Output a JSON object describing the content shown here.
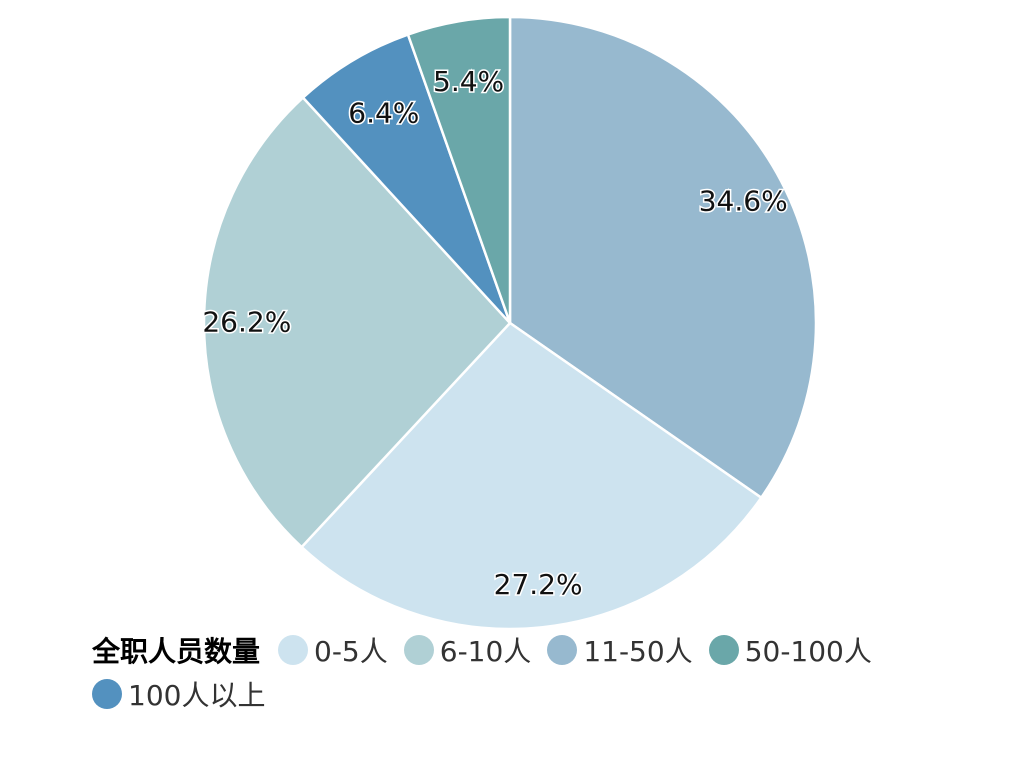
{
  "chart_data": {
    "type": "pie",
    "slices": [
      {
        "label": "11-50人",
        "value": 34.6,
        "display": "34.6%",
        "color": "#97b9cf"
      },
      {
        "label": "0-5人",
        "value": 27.2,
        "display": "27.2%",
        "color": "#cde3ef"
      },
      {
        "label": "6-10人",
        "value": 26.2,
        "display": "26.2%",
        "color": "#b0d0d5"
      },
      {
        "label": "100人以上",
        "value": 6.4,
        "display": "6.4%",
        "color": "#5391bf"
      },
      {
        "label": "50-100人",
        "value": 5.4,
        "display": "5.4%",
        "color": "#6aa7a9"
      }
    ],
    "legend": {
      "title": "全职人员数量",
      "position": "bottom",
      "entries": [
        {
          "label": "0-5人",
          "color": "#cde3ef"
        },
        {
          "label": "6-10人",
          "color": "#b0d0d5"
        },
        {
          "label": "11-50人",
          "color": "#97b9cf"
        },
        {
          "label": "50-100人",
          "color": "#6aa7a9"
        },
        {
          "label": "100人以上",
          "color": "#5391bf"
        }
      ]
    }
  }
}
